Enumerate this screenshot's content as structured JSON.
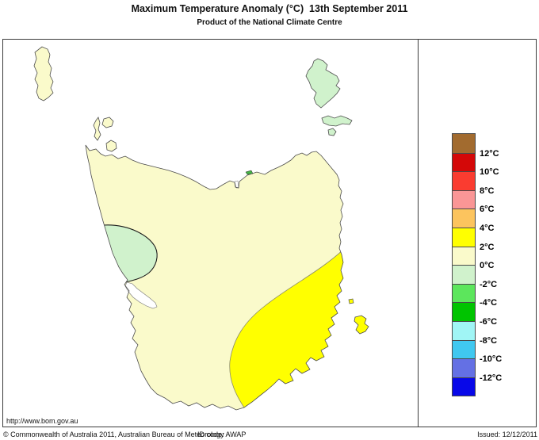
{
  "header": {
    "title": "Maximum Temperature Anomaly (°C)  13th September 2011",
    "subtitle": "Product of the National Climate Centre"
  },
  "map": {
    "url_text": "http://www.bom.gov.au",
    "colors": {
      "land": "#FAFACB",
      "warm": "#FFFF00",
      "cool": "#D0F2CC",
      "cool_dark": "#45B545",
      "sea": "#FFFFFF"
    },
    "regions": [
      {
        "name": "tasmania-mainland",
        "band": "0 to 2"
      },
      {
        "name": "southeast-warm-region",
        "band": "2 to 4"
      },
      {
        "name": "west-coast-cool-patch",
        "band": "0 to -2"
      },
      {
        "name": "king-island",
        "band": "0 to 2"
      },
      {
        "name": "flinders-island",
        "band": "0 to -2"
      },
      {
        "name": "cape-barren-island",
        "band": "0 to -2"
      }
    ]
  },
  "legend": {
    "cells": [
      {
        "color": "#A26B2F",
        "label": "12°C"
      },
      {
        "color": "#D40808",
        "label": "10°C"
      },
      {
        "color": "#FA3C30",
        "label": "8°C"
      },
      {
        "color": "#FA9696",
        "label": "6°C"
      },
      {
        "color": "#FCC45E",
        "label": "4°C"
      },
      {
        "color": "#FFFF00",
        "label": "2°C"
      },
      {
        "color": "#FAFACB",
        "label": "0°C"
      },
      {
        "color": "#D0F2CC",
        "label": "-2°C"
      },
      {
        "color": "#5CE65C",
        "label": "-4°C"
      },
      {
        "color": "#00C400",
        "label": "-6°C"
      },
      {
        "color": "#A0F5F5",
        "label": "-8°C"
      },
      {
        "color": "#40C8F0",
        "label": "-10°C"
      },
      {
        "color": "#6470E4",
        "label": "-12°C"
      },
      {
        "color": "#0808E8",
        "label": ""
      }
    ]
  },
  "footer": {
    "copyright": "© Commonwealth of Australia 2011, Australian Bureau of Meteorology",
    "id_code": "ID code: AWAP",
    "issued": "Issued: 12/12/2011"
  }
}
